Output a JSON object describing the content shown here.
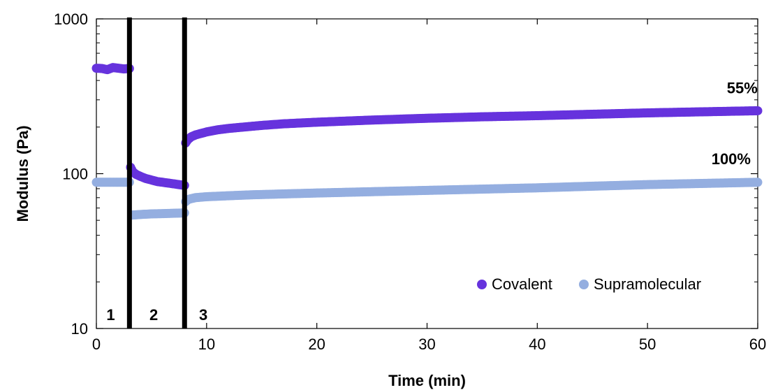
{
  "chart_data": {
    "type": "scatter",
    "title": "",
    "xlabel": "Time (min)",
    "ylabel": "Modulus (Pa)",
    "xlim": [
      0,
      60
    ],
    "ylim": [
      10,
      1000
    ],
    "yscale": "log",
    "x_ticks": [
      0,
      10,
      20,
      30,
      40,
      50,
      60
    ],
    "y_ticks": [
      10,
      100,
      1000
    ],
    "x_tick_labels": [
      "0",
      "10",
      "20",
      "30",
      "40",
      "50",
      "60"
    ],
    "y_tick_labels": [
      "10",
      "100",
      "1000"
    ],
    "grid": false,
    "legend_position": "bottom-right",
    "vertical_lines": [
      3,
      8
    ],
    "regions": [
      {
        "label": "1",
        "x": 1.3
      },
      {
        "label": "2",
        "x": 5.2
      },
      {
        "label": "3",
        "x": 9.7
      }
    ],
    "annotations": [
      {
        "text": "55%",
        "x": 57.2,
        "y": 330
      },
      {
        "text": "100%",
        "x": 55.8,
        "y": 115
      }
    ],
    "series": [
      {
        "name": "Covalent",
        "color": "#6633dd",
        "segments": [
          {
            "x": [
              0,
              0.5,
              1,
              1.5,
              2,
              2.5,
              3
            ],
            "y": [
              480,
              478,
              470,
              485,
              480,
              475,
              478
            ]
          },
          {
            "x": [
              3.1,
              3.3,
              3.6,
              4,
              4.5,
              5,
              5.5,
              6,
              6.5,
              7,
              7.5,
              8
            ],
            "y": [
              110,
              103,
              99,
              96,
              93,
              91,
              89,
              88,
              87,
              86,
              85,
              84
            ]
          },
          {
            "x": [
              8.1,
              8.3,
              8.6,
              9,
              9.5,
              10,
              11,
              12,
              13,
              14,
              15,
              17,
              20,
              25,
              30,
              35,
              40,
              45,
              50,
              55,
              60
            ],
            "y": [
              158,
              166,
              173,
              178,
              182,
              186,
              192,
              196,
              199,
              202,
              205,
              210,
              215,
              222,
              228,
              233,
              237,
              242,
              247,
              251,
              255
            ]
          }
        ]
      },
      {
        "name": "Supramolecular",
        "color": "#94aee0",
        "segments": [
          {
            "x": [
              0,
              0.5,
              1,
              1.5,
              2,
              2.5,
              3
            ],
            "y": [
              88,
              88,
              88,
              88,
              88,
              88,
              88
            ]
          },
          {
            "x": [
              3.2,
              4,
              5,
              6,
              7,
              8
            ],
            "y": [
              54,
              54.5,
              55,
              55.2,
              55.5,
              55.8
            ]
          },
          {
            "x": [
              8.1,
              8.3,
              8.6,
              9,
              10,
              12,
              14,
              17,
              20,
              25,
              30,
              35,
              40,
              45,
              50,
              55,
              60
            ],
            "y": [
              66,
              68,
              69,
              70,
              71,
              72,
              73,
              74,
              75,
              76.5,
              78,
              79.5,
              81,
              83,
              85,
              86.5,
              88
            ]
          }
        ]
      }
    ]
  }
}
